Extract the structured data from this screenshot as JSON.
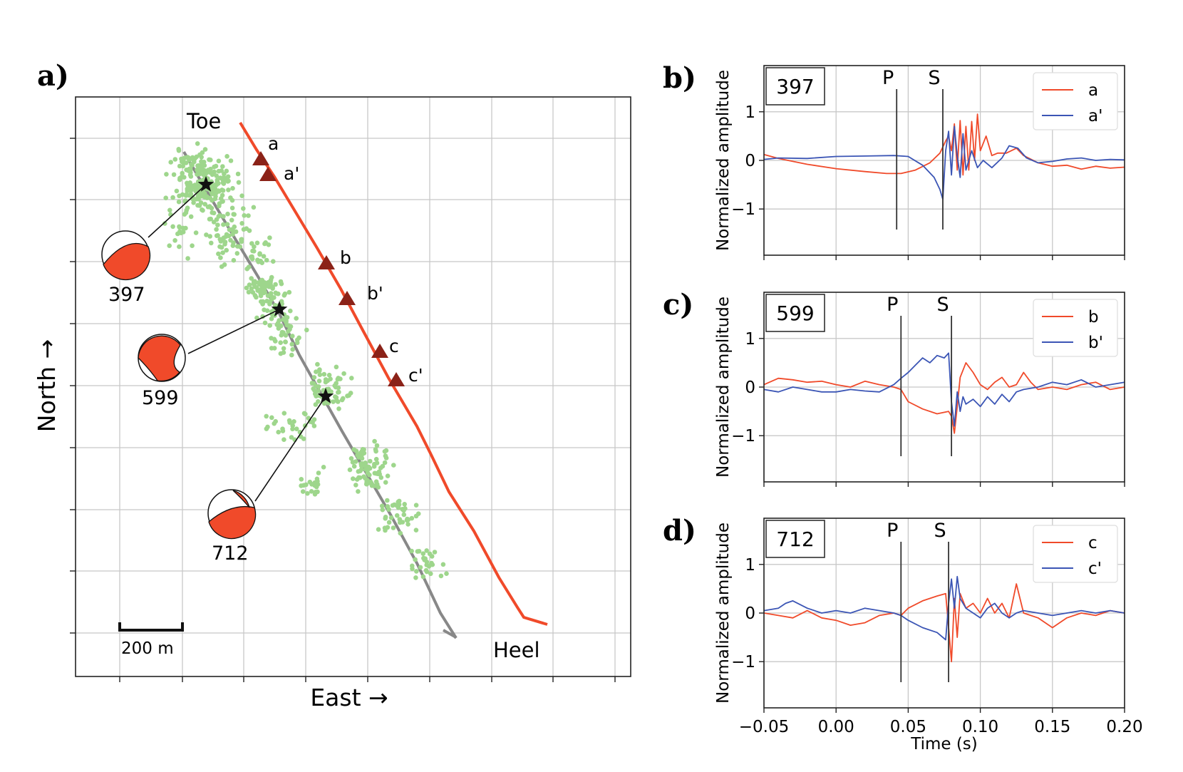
{
  "panels": {
    "a": "a)",
    "b": "b)",
    "c": "c)",
    "d": "d)"
  },
  "map": {
    "xlabel": "East →",
    "ylabel": "North →",
    "toe_label": "Toe",
    "heel_label": "Heel",
    "scale_label": "200 m",
    "colors": {
      "treatment_well": "#f04a2a",
      "monitor_well": "#888888",
      "events": "#9ed68c",
      "stations": "#8b2218",
      "focal": "#f04a2a"
    },
    "stations": [
      "a",
      "a'",
      "b",
      "b'",
      "c",
      "c'"
    ],
    "events": [
      "397",
      "599",
      "712"
    ]
  },
  "chart_data": [
    {
      "type": "line",
      "panel": "b)",
      "event_id": "397",
      "ylabel": "Normalized amplitude",
      "xlim": [
        -0.05,
        0.2
      ],
      "ylim": [
        -1.95,
        1.95
      ],
      "yticks": [
        -1,
        0,
        1
      ],
      "grid": true,
      "legend": "top-right",
      "picks": [
        {
          "label": "P",
          "x": 0.042
        },
        {
          "label": "S",
          "x": 0.074
        }
      ],
      "series": [
        {
          "name": "a",
          "color": "#f04a2a",
          "pts": [
            [
              -0.05,
              0.12
            ],
            [
              -0.04,
              0.04
            ],
            [
              -0.02,
              -0.08
            ],
            [
              0.0,
              -0.17
            ],
            [
              0.02,
              -0.23
            ],
            [
              0.035,
              -0.27
            ],
            [
              0.045,
              -0.27
            ],
            [
              0.055,
              -0.2
            ],
            [
              0.065,
              -0.05
            ],
            [
              0.072,
              0.15
            ],
            [
              0.076,
              0.4
            ],
            [
              0.078,
              0.5
            ],
            [
              0.08,
              0.2
            ],
            [
              0.082,
              0.75
            ],
            [
              0.084,
              -0.2
            ],
            [
              0.086,
              0.82
            ],
            [
              0.088,
              -0.3
            ],
            [
              0.09,
              0.7
            ],
            [
              0.092,
              -0.2
            ],
            [
              0.094,
              0.8
            ],
            [
              0.096,
              0.0
            ],
            [
              0.098,
              0.95
            ],
            [
              0.1,
              0.2
            ],
            [
              0.104,
              0.5
            ],
            [
              0.108,
              0.1
            ],
            [
              0.112,
              0.15
            ],
            [
              0.118,
              0.15
            ],
            [
              0.125,
              0.25
            ],
            [
              0.13,
              0.1
            ],
            [
              0.14,
              -0.05
            ],
            [
              0.15,
              -0.12
            ],
            [
              0.16,
              -0.1
            ],
            [
              0.17,
              -0.18
            ],
            [
              0.18,
              -0.12
            ],
            [
              0.19,
              -0.16
            ],
            [
              0.2,
              -0.14
            ]
          ]
        },
        {
          "name": "a'",
          "color": "#3b55b5",
          "pts": [
            [
              -0.05,
              0.02
            ],
            [
              -0.04,
              0.05
            ],
            [
              -0.02,
              0.04
            ],
            [
              0.0,
              0.08
            ],
            [
              0.02,
              0.09
            ],
            [
              0.04,
              0.1
            ],
            [
              0.05,
              0.08
            ],
            [
              0.06,
              -0.1
            ],
            [
              0.068,
              -0.35
            ],
            [
              0.072,
              -0.6
            ],
            [
              0.074,
              -0.8
            ],
            [
              0.076,
              0.2
            ],
            [
              0.078,
              0.6
            ],
            [
              0.08,
              -0.3
            ],
            [
              0.082,
              0.7
            ],
            [
              0.084,
              0.1
            ],
            [
              0.086,
              -0.35
            ],
            [
              0.088,
              0.55
            ],
            [
              0.09,
              -0.2
            ],
            [
              0.094,
              0.2
            ],
            [
              0.098,
              -0.15
            ],
            [
              0.102,
              0.0
            ],
            [
              0.108,
              -0.15
            ],
            [
              0.115,
              0.05
            ],
            [
              0.12,
              0.3
            ],
            [
              0.126,
              0.25
            ],
            [
              0.132,
              0.05
            ],
            [
              0.14,
              -0.05
            ],
            [
              0.15,
              -0.02
            ],
            [
              0.16,
              0.03
            ],
            [
              0.17,
              0.05
            ],
            [
              0.18,
              0.0
            ],
            [
              0.19,
              0.02
            ],
            [
              0.2,
              0.01
            ]
          ]
        }
      ]
    },
    {
      "type": "line",
      "panel": "c)",
      "event_id": "599",
      "ylabel": "Normalized amplitude",
      "xlim": [
        -0.05,
        0.2
      ],
      "ylim": [
        -1.95,
        1.95
      ],
      "yticks": [
        -1,
        0,
        1
      ],
      "grid": true,
      "legend": "top-right",
      "picks": [
        {
          "label": "P",
          "x": 0.045
        },
        {
          "label": "S",
          "x": 0.08
        }
      ],
      "series": [
        {
          "name": "b",
          "color": "#f04a2a",
          "pts": [
            [
              -0.05,
              0.05
            ],
            [
              -0.04,
              0.18
            ],
            [
              -0.03,
              0.15
            ],
            [
              -0.02,
              0.1
            ],
            [
              -0.01,
              0.12
            ],
            [
              0.0,
              0.05
            ],
            [
              0.01,
              0.0
            ],
            [
              0.02,
              0.12
            ],
            [
              0.03,
              0.05
            ],
            [
              0.04,
              0.0
            ],
            [
              0.045,
              -0.05
            ],
            [
              0.05,
              -0.3
            ],
            [
              0.06,
              -0.45
            ],
            [
              0.07,
              -0.55
            ],
            [
              0.078,
              -0.5
            ],
            [
              0.08,
              -0.6
            ],
            [
              0.082,
              -0.95
            ],
            [
              0.084,
              -0.4
            ],
            [
              0.086,
              0.2
            ],
            [
              0.09,
              0.5
            ],
            [
              0.095,
              0.3
            ],
            [
              0.1,
              0.05
            ],
            [
              0.105,
              -0.05
            ],
            [
              0.11,
              0.1
            ],
            [
              0.115,
              0.2
            ],
            [
              0.12,
              0.0
            ],
            [
              0.125,
              0.05
            ],
            [
              0.13,
              0.3
            ],
            [
              0.135,
              0.1
            ],
            [
              0.14,
              -0.05
            ],
            [
              0.15,
              0.0
            ],
            [
              0.16,
              -0.05
            ],
            [
              0.17,
              0.05
            ],
            [
              0.18,
              0.1
            ],
            [
              0.19,
              -0.05
            ],
            [
              0.2,
              0.0
            ]
          ]
        },
        {
          "name": "b'",
          "color": "#3b55b5",
          "pts": [
            [
              -0.05,
              -0.05
            ],
            [
              -0.04,
              -0.1
            ],
            [
              -0.03,
              0.0
            ],
            [
              -0.02,
              -0.05
            ],
            [
              -0.01,
              -0.1
            ],
            [
              0.0,
              -0.1
            ],
            [
              0.01,
              -0.05
            ],
            [
              0.02,
              -0.08
            ],
            [
              0.03,
              -0.1
            ],
            [
              0.04,
              0.05
            ],
            [
              0.045,
              0.18
            ],
            [
              0.05,
              0.3
            ],
            [
              0.055,
              0.45
            ],
            [
              0.06,
              0.6
            ],
            [
              0.065,
              0.5
            ],
            [
              0.07,
              0.65
            ],
            [
              0.075,
              0.6
            ],
            [
              0.078,
              0.7
            ],
            [
              0.08,
              -0.3
            ],
            [
              0.082,
              -0.8
            ],
            [
              0.084,
              -0.1
            ],
            [
              0.086,
              -0.5
            ],
            [
              0.088,
              -0.2
            ],
            [
              0.09,
              -0.35
            ],
            [
              0.095,
              -0.25
            ],
            [
              0.1,
              -0.4
            ],
            [
              0.105,
              -0.2
            ],
            [
              0.11,
              -0.35
            ],
            [
              0.115,
              -0.15
            ],
            [
              0.12,
              -0.3
            ],
            [
              0.125,
              -0.1
            ],
            [
              0.13,
              -0.05
            ],
            [
              0.14,
              0.0
            ],
            [
              0.15,
              0.1
            ],
            [
              0.16,
              0.05
            ],
            [
              0.17,
              0.15
            ],
            [
              0.18,
              0.0
            ],
            [
              0.19,
              0.05
            ],
            [
              0.2,
              0.1
            ]
          ]
        }
      ]
    },
    {
      "type": "line",
      "panel": "d)",
      "event_id": "712",
      "ylabel": "Normalized amplitude",
      "xlabel": "Time (s)",
      "xlim": [
        -0.05,
        0.2
      ],
      "ylim": [
        -1.95,
        1.95
      ],
      "xticks": [
        -0.05,
        0.0,
        0.05,
        0.1,
        0.15,
        0.2
      ],
      "xtick_labels": [
        "−0.05",
        "0.00",
        "0.05",
        "0.10",
        "0.15",
        "0.20"
      ],
      "yticks": [
        -1,
        0,
        1
      ],
      "grid": true,
      "legend": "top-right",
      "picks": [
        {
          "label": "P",
          "x": 0.045
        },
        {
          "label": "S",
          "x": 0.078
        }
      ],
      "series": [
        {
          "name": "c",
          "color": "#f04a2a",
          "pts": [
            [
              -0.05,
              0.0
            ],
            [
              -0.04,
              -0.05
            ],
            [
              -0.03,
              -0.1
            ],
            [
              -0.02,
              0.05
            ],
            [
              -0.01,
              -0.1
            ],
            [
              0.0,
              -0.15
            ],
            [
              0.01,
              -0.25
            ],
            [
              0.02,
              -0.2
            ],
            [
              0.03,
              -0.05
            ],
            [
              0.04,
              0.0
            ],
            [
              0.045,
              -0.05
            ],
            [
              0.05,
              0.1
            ],
            [
              0.06,
              0.25
            ],
            [
              0.07,
              0.35
            ],
            [
              0.076,
              0.4
            ],
            [
              0.078,
              -0.3
            ],
            [
              0.08,
              -1.0
            ],
            [
              0.082,
              0.3
            ],
            [
              0.084,
              -0.5
            ],
            [
              0.086,
              0.4
            ],
            [
              0.09,
              0.1
            ],
            [
              0.095,
              0.2
            ],
            [
              0.1,
              0.0
            ],
            [
              0.105,
              0.3
            ],
            [
              0.11,
              0.0
            ],
            [
              0.115,
              0.2
            ],
            [
              0.12,
              -0.1
            ],
            [
              0.125,
              0.6
            ],
            [
              0.13,
              0.0
            ],
            [
              0.14,
              -0.1
            ],
            [
              0.15,
              -0.3
            ],
            [
              0.16,
              -0.1
            ],
            [
              0.17,
              0.0
            ],
            [
              0.18,
              -0.05
            ],
            [
              0.19,
              0.05
            ],
            [
              0.2,
              0.0
            ]
          ]
        },
        {
          "name": "c'",
          "color": "#3b55b5",
          "pts": [
            [
              -0.05,
              0.05
            ],
            [
              -0.04,
              0.1
            ],
            [
              -0.035,
              0.2
            ],
            [
              -0.03,
              0.25
            ],
            [
              -0.02,
              0.1
            ],
            [
              -0.01,
              0.0
            ],
            [
              0.0,
              0.05
            ],
            [
              0.01,
              0.0
            ],
            [
              0.02,
              0.1
            ],
            [
              0.03,
              0.05
            ],
            [
              0.04,
              0.0
            ],
            [
              0.045,
              -0.05
            ],
            [
              0.05,
              -0.15
            ],
            [
              0.06,
              -0.3
            ],
            [
              0.07,
              -0.4
            ],
            [
              0.076,
              -0.55
            ],
            [
              0.078,
              0.2
            ],
            [
              0.08,
              0.7
            ],
            [
              0.082,
              0.1
            ],
            [
              0.084,
              0.75
            ],
            [
              0.086,
              0.3
            ],
            [
              0.09,
              0.1
            ],
            [
              0.095,
              0.0
            ],
            [
              0.1,
              -0.1
            ],
            [
              0.105,
              0.1
            ],
            [
              0.11,
              0.2
            ],
            [
              0.115,
              0.0
            ],
            [
              0.12,
              -0.1
            ],
            [
              0.125,
              0.0
            ],
            [
              0.13,
              0.05
            ],
            [
              0.14,
              0.0
            ],
            [
              0.15,
              -0.05
            ],
            [
              0.16,
              0.0
            ],
            [
              0.17,
              0.05
            ],
            [
              0.18,
              0.0
            ],
            [
              0.19,
              0.05
            ],
            [
              0.2,
              0.0
            ]
          ]
        }
      ]
    }
  ]
}
